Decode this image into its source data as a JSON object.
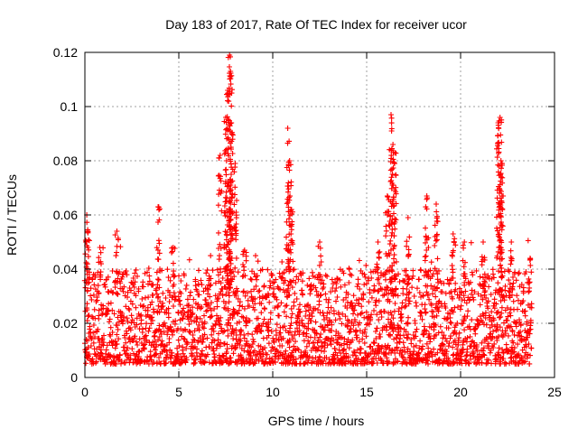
{
  "chart_data": {
    "type": "scatter",
    "title": "Day 183 of 2017, Rate Of TEC Index for receiver ucor",
    "xlabel": "GPS time / hours",
    "ylabel": "ROTI / TECUs",
    "xlim": [
      0,
      25
    ],
    "ylim": [
      0,
      0.12
    ],
    "xticks": [
      0,
      5,
      10,
      15,
      20,
      25
    ],
    "yticks": [
      0,
      0.02,
      0.04,
      0.06,
      0.08,
      0.1,
      0.12
    ],
    "xtick_labels": [
      "0",
      "5",
      "10",
      "15",
      "20",
      "25"
    ],
    "ytick_labels": [
      "0",
      "0.02",
      "0.04",
      "0.06",
      "0.08",
      "0.1",
      "0.12"
    ],
    "grid": true,
    "marker": "+",
    "color": "#ff0000",
    "x_data_range": [
      0,
      23.8
    ],
    "typical_range": [
      0.005,
      0.04
    ],
    "spikes": [
      {
        "x": 0.1,
        "y": 0.06
      },
      {
        "x": 0.15,
        "y": 0.054
      },
      {
        "x": 0.8,
        "y": 0.048
      },
      {
        "x": 1.7,
        "y": 0.054
      },
      {
        "x": 3.9,
        "y": 0.063
      },
      {
        "x": 4.7,
        "y": 0.048
      },
      {
        "x": 7.2,
        "y": 0.082
      },
      {
        "x": 7.5,
        "y": 0.096
      },
      {
        "x": 7.6,
        "y": 0.106
      },
      {
        "x": 7.7,
        "y": 0.119
      },
      {
        "x": 7.75,
        "y": 0.113
      },
      {
        "x": 7.8,
        "y": 0.094
      },
      {
        "x": 8.0,
        "y": 0.079
      },
      {
        "x": 8.5,
        "y": 0.047
      },
      {
        "x": 10.8,
        "y": 0.092
      },
      {
        "x": 10.9,
        "y": 0.08
      },
      {
        "x": 11.0,
        "y": 0.062
      },
      {
        "x": 12.5,
        "y": 0.05
      },
      {
        "x": 15.6,
        "y": 0.05
      },
      {
        "x": 16.1,
        "y": 0.067
      },
      {
        "x": 16.3,
        "y": 0.097
      },
      {
        "x": 16.4,
        "y": 0.086
      },
      {
        "x": 16.5,
        "y": 0.083
      },
      {
        "x": 17.2,
        "y": 0.059
      },
      {
        "x": 18.2,
        "y": 0.067
      },
      {
        "x": 18.7,
        "y": 0.064
      },
      {
        "x": 19.6,
        "y": 0.053
      },
      {
        "x": 20.2,
        "y": 0.05
      },
      {
        "x": 21.2,
        "y": 0.05
      },
      {
        "x": 22.0,
        "y": 0.094
      },
      {
        "x": 22.1,
        "y": 0.096
      },
      {
        "x": 22.15,
        "y": 0.08
      },
      {
        "x": 22.2,
        "y": 0.067
      },
      {
        "x": 22.7,
        "y": 0.05
      },
      {
        "x": 23.7,
        "y": 0.044
      }
    ]
  }
}
